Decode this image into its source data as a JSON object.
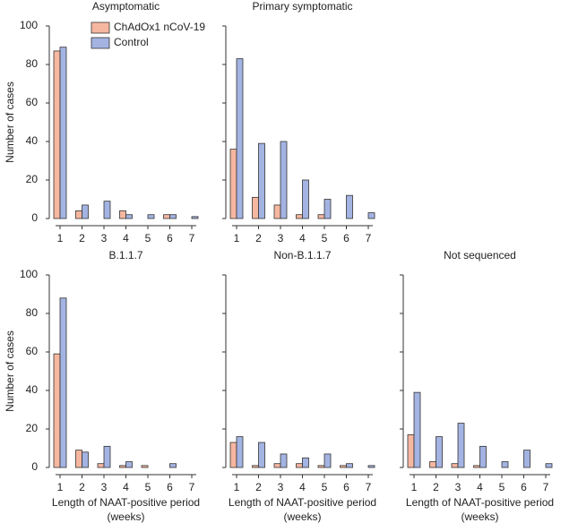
{
  "chart_data": [
    {
      "type": "bar",
      "title": "Asymptomatic",
      "y_label": "Number of cases",
      "categories": [
        "1",
        "2",
        "3",
        "4",
        "5",
        "6",
        "7"
      ],
      "ylim": [
        0,
        100
      ],
      "yticks": [
        0,
        20,
        40,
        60,
        80,
        100
      ],
      "series": [
        {
          "name": "ChAdOx1 nCoV-19",
          "color": "#f6b7a0",
          "values": [
            87,
            4,
            0,
            4,
            0,
            2,
            0
          ]
        },
        {
          "name": "Control",
          "color": "#a3b3e2",
          "values": [
            89,
            7,
            9,
            2,
            2,
            2,
            1
          ]
        }
      ]
    },
    {
      "type": "bar",
      "title": "Primary symptomatic",
      "categories": [
        "1",
        "2",
        "3",
        "4",
        "5",
        "6",
        "7"
      ],
      "ylim": [
        0,
        100
      ],
      "yticks": [
        0,
        20,
        40,
        60,
        80,
        100
      ],
      "series": [
        {
          "color": "#f6b7a0",
          "values": [
            36,
            11,
            7,
            2,
            2,
            0,
            0
          ]
        },
        {
          "color": "#a3b3e2",
          "values": [
            83,
            39,
            40,
            20,
            10,
            12,
            3
          ]
        }
      ]
    },
    {
      "type": "bar",
      "title": "B.1.1.7",
      "y_label": "Number of cases",
      "x_label": [
        "Length of NAAT-positive period",
        "(weeks)"
      ],
      "categories": [
        "1",
        "2",
        "3",
        "4",
        "5",
        "6",
        "7"
      ],
      "ylim": [
        0,
        100
      ],
      "yticks": [
        0,
        20,
        40,
        60,
        80,
        100
      ],
      "series": [
        {
          "color": "#f6b7a0",
          "values": [
            59,
            9,
            2,
            1,
            1,
            0,
            0
          ]
        },
        {
          "color": "#a3b3e2",
          "values": [
            88,
            8,
            11,
            3,
            0,
            2,
            0
          ]
        }
      ]
    },
    {
      "type": "bar",
      "title": "Non-B.1.1.7",
      "x_label": [
        "Length of NAAT-positive period",
        "(weeks)"
      ],
      "categories": [
        "1",
        "2",
        "3",
        "4",
        "5",
        "6",
        "7"
      ],
      "ylim": [
        0,
        100
      ],
      "yticks": [
        0,
        20,
        40,
        60,
        80,
        100
      ],
      "series": [
        {
          "color": "#f6b7a0",
          "values": [
            13,
            1,
            2,
            2,
            1,
            1,
            0
          ]
        },
        {
          "color": "#a3b3e2",
          "values": [
            16,
            13,
            7,
            5,
            7,
            2,
            1
          ]
        }
      ]
    },
    {
      "type": "bar",
      "title": "Not sequenced",
      "x_label": [
        "Length of NAAT-positive period",
        "(weeks)"
      ],
      "categories": [
        "1",
        "2",
        "3",
        "4",
        "5",
        "6",
        "7"
      ],
      "ylim": [
        0,
        100
      ],
      "yticks": [
        0,
        20,
        40,
        60,
        80,
        100
      ],
      "series": [
        {
          "color": "#f6b7a0",
          "values": [
            17,
            3,
            2,
            1,
            0,
            0,
            0
          ]
        },
        {
          "color": "#a3b3e2",
          "values": [
            39,
            16,
            23,
            11,
            3,
            9,
            2
          ]
        }
      ]
    }
  ]
}
